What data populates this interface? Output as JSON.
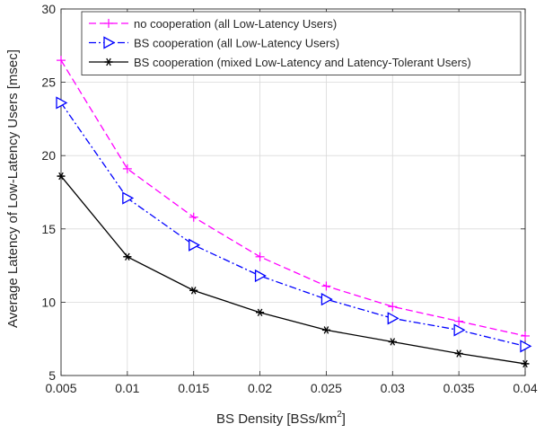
{
  "chart_data": {
    "type": "line",
    "xlabel": "BS Density [BSs/km",
    "xlabel_sup": "2",
    "xlabel_suffix": "]",
    "ylabel": "Average Latency of Low-Latency Users [msec]",
    "xlim": [
      0.005,
      0.04
    ],
    "ylim": [
      5,
      30
    ],
    "x_ticks": [
      "0.005",
      "0.01",
      "0.015",
      "0.02",
      "0.025",
      "0.03",
      "0.035",
      "0.04"
    ],
    "y_ticks": [
      "5",
      "10",
      "15",
      "20",
      "25",
      "30"
    ],
    "grid": true,
    "legend_position": "top-left",
    "x": [
      0.005,
      0.01,
      0.015,
      0.02,
      0.025,
      0.03,
      0.035,
      0.04
    ],
    "series": [
      {
        "name": "no cooperation (all Low-Latency Users)",
        "values": [
          26.5,
          19.1,
          15.8,
          13.1,
          11.1,
          9.7,
          8.7,
          7.7
        ],
        "color": "#ff00ff",
        "line_style": "dashed",
        "marker": "plus"
      },
      {
        "name": "BS cooperation (all Low-Latency Users)",
        "values": [
          23.6,
          17.1,
          13.9,
          11.8,
          10.2,
          8.9,
          8.1,
          7.0
        ],
        "color": "#0000ff",
        "line_style": "dashdot",
        "marker": "triangle-right"
      },
      {
        "name": "BS cooperation (mixed Low-Latency and Latency-Tolerant Users)",
        "values": [
          18.6,
          13.1,
          10.8,
          9.3,
          8.1,
          7.3,
          6.5,
          5.8
        ],
        "color": "#000000",
        "line_style": "solid",
        "marker": "asterisk"
      }
    ]
  }
}
